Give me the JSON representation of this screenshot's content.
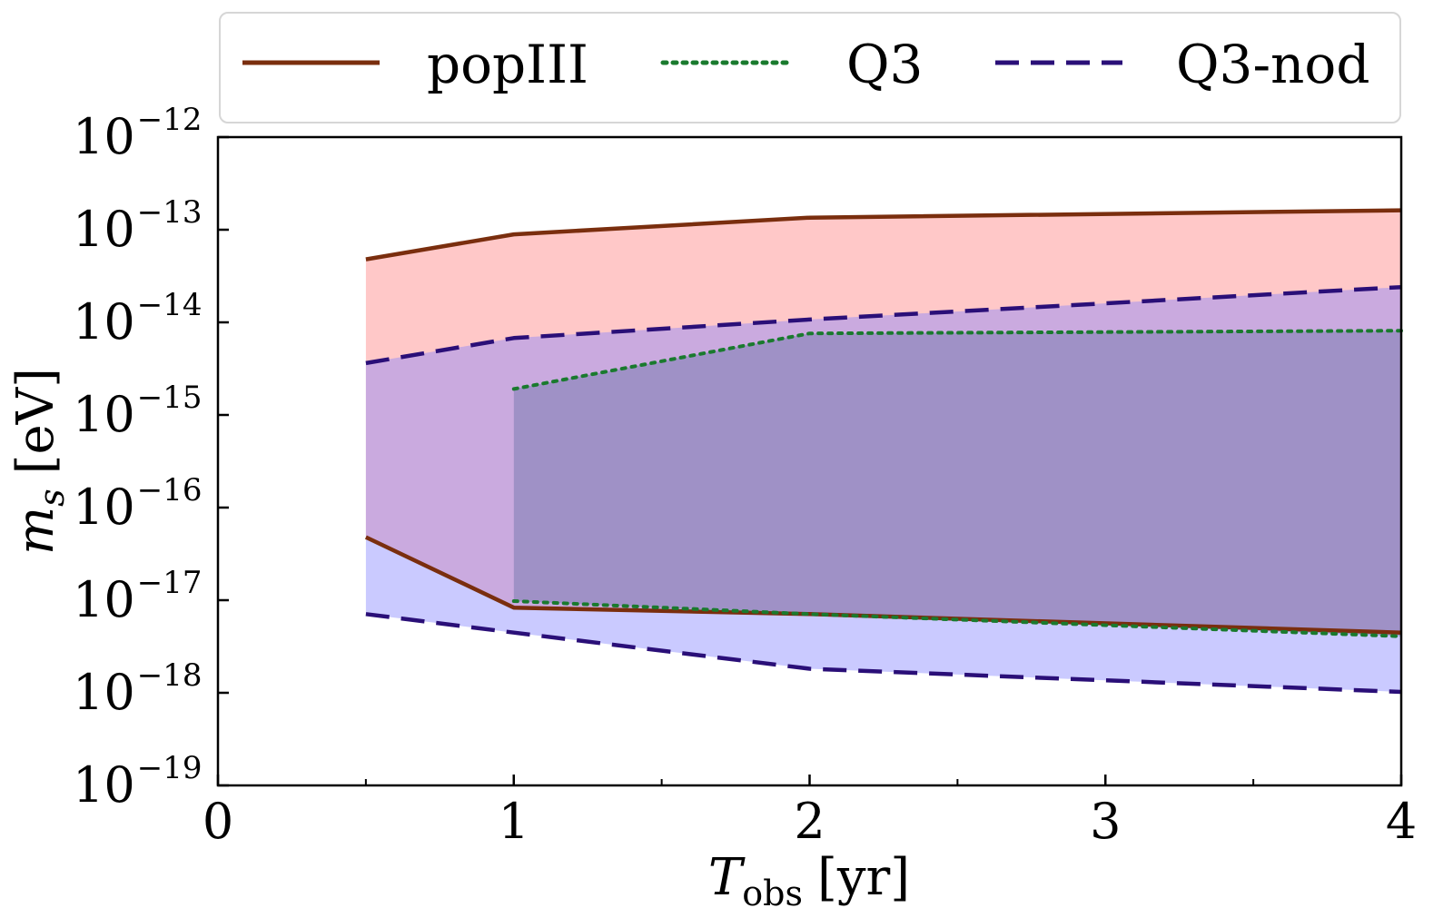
{
  "chart_data": {
    "type": "area",
    "title": "",
    "xlabel": {
      "symbol": "T",
      "subscript": "obs",
      "unit": "[yr]"
    },
    "ylabel": {
      "symbol": "m",
      "subscript": "s",
      "unit": "[eV]"
    },
    "xlim": [
      0,
      4
    ],
    "ylim_log10": [
      -19,
      -12
    ],
    "xticks": [
      0,
      1,
      2,
      3,
      4
    ],
    "xtick_labels": [
      "0",
      "1",
      "2",
      "3",
      "4"
    ],
    "xticks_minor": [
      0.5,
      1.5,
      2.5,
      3.5
    ],
    "yticks_log10": [
      -12,
      -13,
      -14,
      -15,
      -16,
      -17,
      -18,
      -19
    ],
    "ytick_base": "10",
    "ytick_exponents": [
      "−12",
      "−13",
      "−14",
      "−15",
      "−16",
      "−17",
      "−18",
      "−19"
    ],
    "grid": false,
    "legend_position": "top, outside",
    "series": [
      {
        "name": "popIII",
        "line_style": "solid",
        "line_color": "#7a2e0e",
        "fill_color": "#ffc8c8",
        "fill_opacity": 1,
        "x": [
          0.5,
          1,
          2,
          4
        ],
        "upper_log10": [
          -13.32,
          -13.05,
          -12.87,
          -12.79
        ],
        "lower_log10": [
          -16.32,
          -17.08,
          -17.15,
          -17.35
        ]
      },
      {
        "name": "Q3",
        "line_style": "dotted",
        "line_color": "#1a7a2e",
        "fill_color": "#7a7a7a",
        "fill_opacity": 0.55,
        "x": [
          1,
          2,
          4
        ],
        "upper_log10": [
          -14.72,
          -14.12,
          -14.09
        ],
        "lower_log10": [
          -17.01,
          -17.15,
          -17.39
        ]
      },
      {
        "name": "Q3-nod",
        "line_style": "dashed",
        "line_color": "#2a0f78",
        "fill_color": "#8080ff",
        "fill_opacity": 0.42,
        "x": [
          0.5,
          1,
          2,
          4
        ],
        "upper_log10": [
          -14.44,
          -14.17,
          -13.97,
          -13.62
        ],
        "lower_log10": [
          -17.15,
          -17.35,
          -17.74,
          -17.99
        ]
      }
    ]
  }
}
